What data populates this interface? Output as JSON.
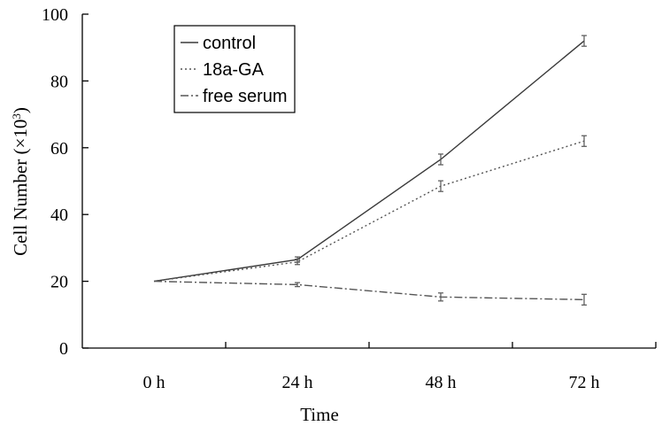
{
  "chart_data": {
    "type": "line",
    "categories": [
      "0 h",
      "24 h",
      "48 h",
      "72 h"
    ],
    "xlabel": "Time",
    "ylabel": "Cell Number (×10",
    "ylabel_sup": "3",
    "ylabel_close": ")",
    "ylim": [
      0,
      100
    ],
    "yticks": [
      "0",
      "20",
      "40",
      "60",
      "80",
      "100"
    ],
    "legend_position": "top-left",
    "series": [
      {
        "name": "control",
        "style": "solid",
        "color": "#3a3a3a",
        "values": [
          20,
          26.5,
          56.5,
          92
        ],
        "errors": [
          0,
          0.8,
          1.6,
          1.6
        ]
      },
      {
        "name": "18a-GA",
        "style": "dotted",
        "color": "#555555",
        "values": [
          20,
          25.8,
          48.5,
          62
        ],
        "errors": [
          0,
          0.8,
          1.6,
          1.6
        ]
      },
      {
        "name": "free serum",
        "style": "dashdot",
        "color": "#555555",
        "values": [
          20,
          19,
          15.3,
          14.5
        ],
        "errors": [
          0,
          0.6,
          1.2,
          1.6
        ]
      }
    ]
  }
}
